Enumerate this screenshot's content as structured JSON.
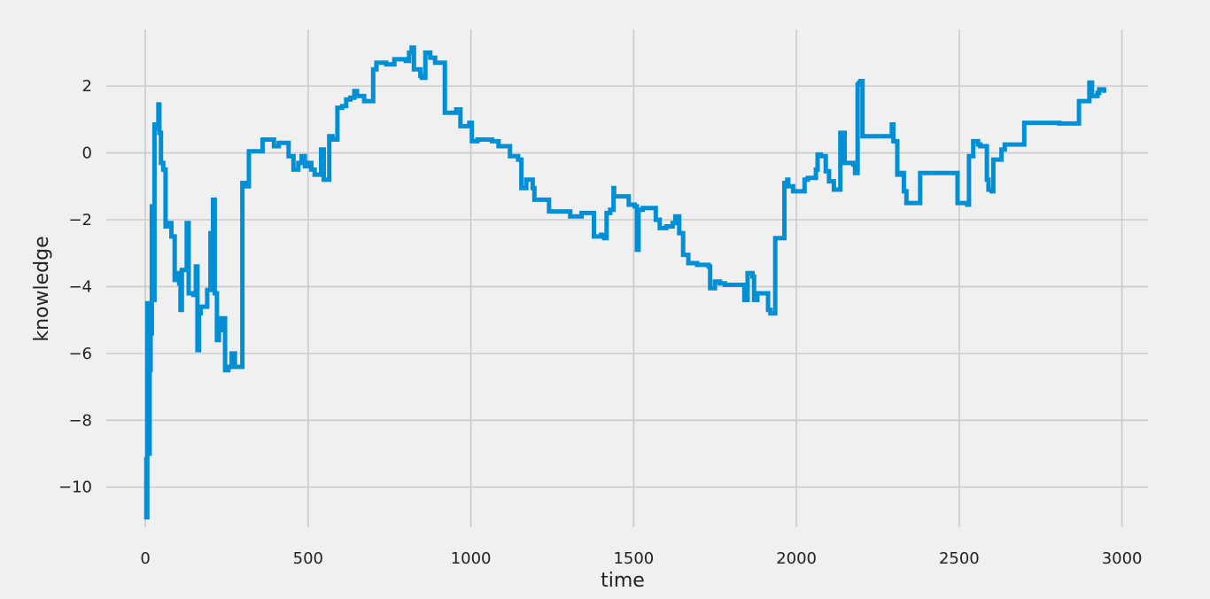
{
  "chart_data": {
    "type": "line",
    "title": "",
    "xlabel": "time",
    "ylabel": "knowledge",
    "xlim": [
      -120,
      3080
    ],
    "ylim": [
      -11.2,
      3.7
    ],
    "xticks": [
      0,
      500,
      1000,
      1500,
      2000,
      2500,
      3000
    ],
    "yticks": [
      -10,
      -8,
      -6,
      -4,
      -2,
      0,
      2
    ],
    "xtick_labels": [
      "0",
      "500",
      "1000",
      "1500",
      "2000",
      "2500",
      "3000"
    ],
    "ytick_labels": [
      "−10",
      "−8",
      "−6",
      "−4",
      "−2",
      "0",
      "2"
    ],
    "grid": true,
    "style": "fivethirtyeight",
    "colors": {
      "background": "#f0f0f0",
      "grid": "#cbcbcb",
      "line": "#008fd5"
    },
    "series": [
      {
        "color": "#008fd5",
        "step": true,
        "points": [
          [
            0,
            -9.1
          ],
          [
            3,
            -10.9
          ],
          [
            6,
            -4.5
          ],
          [
            10,
            -9.0
          ],
          [
            13,
            -6.5
          ],
          [
            16,
            -5.4
          ],
          [
            20,
            -1.6
          ],
          [
            24,
            -4.4
          ],
          [
            28,
            0.85
          ],
          [
            36,
            0.75
          ],
          [
            40,
            1.45
          ],
          [
            43,
            0.6
          ],
          [
            48,
            -0.3
          ],
          [
            55,
            -0.5
          ],
          [
            62,
            -2.2
          ],
          [
            68,
            -2.1
          ],
          [
            80,
            -2.5
          ],
          [
            90,
            -3.8
          ],
          [
            96,
            -3.6
          ],
          [
            104,
            -3.9
          ],
          [
            108,
            -4.7
          ],
          [
            112,
            -3.5
          ],
          [
            120,
            -3.5
          ],
          [
            127,
            -2.1
          ],
          [
            133,
            -4.2
          ],
          [
            140,
            -4.2
          ],
          [
            148,
            -4.25
          ],
          [
            155,
            -3.4
          ],
          [
            160,
            -5.9
          ],
          [
            165,
            -4.8
          ],
          [
            170,
            -4.6
          ],
          [
            180,
            -4.6
          ],
          [
            190,
            -4.1
          ],
          [
            200,
            -2.4
          ],
          [
            208,
            -1.4
          ],
          [
            213,
            -4.2
          ],
          [
            220,
            -5.6
          ],
          [
            226,
            -5.3
          ],
          [
            233,
            -4.95
          ],
          [
            245,
            -6.5
          ],
          [
            255,
            -6.4
          ],
          [
            265,
            -6.0
          ],
          [
            275,
            -6.4
          ],
          [
            298,
            -0.9
          ],
          [
            310,
            -1.0
          ],
          [
            318,
            0.05
          ],
          [
            350,
            0.05
          ],
          [
            360,
            0.4
          ],
          [
            395,
            0.2
          ],
          [
            410,
            0.3
          ],
          [
            440,
            -0.1
          ],
          [
            455,
            -0.5
          ],
          [
            470,
            -0.3
          ],
          [
            480,
            -0.1
          ],
          [
            490,
            -0.4
          ],
          [
            500,
            -0.3
          ],
          [
            510,
            -0.5
          ],
          [
            520,
            -0.65
          ],
          [
            540,
            0.1
          ],
          [
            548,
            -0.8
          ],
          [
            565,
            0.5
          ],
          [
            575,
            0.4
          ],
          [
            590,
            1.35
          ],
          [
            605,
            1.4
          ],
          [
            617,
            1.6
          ],
          [
            630,
            1.65
          ],
          [
            642,
            1.85
          ],
          [
            650,
            1.7
          ],
          [
            672,
            1.55
          ],
          [
            700,
            2.5
          ],
          [
            710,
            2.7
          ],
          [
            740,
            2.65
          ],
          [
            765,
            2.8
          ],
          [
            800,
            2.75
          ],
          [
            810,
            3.0
          ],
          [
            818,
            3.15
          ],
          [
            825,
            2.5
          ],
          [
            845,
            2.3
          ],
          [
            850,
            2.25
          ],
          [
            860,
            3.0
          ],
          [
            875,
            2.85
          ],
          [
            890,
            2.7
          ],
          [
            920,
            1.2
          ],
          [
            955,
            1.3
          ],
          [
            968,
            0.8
          ],
          [
            985,
            0.8
          ],
          [
            995,
            0.9
          ],
          [
            1003,
            0.35
          ],
          [
            1020,
            0.4
          ],
          [
            1065,
            0.35
          ],
          [
            1085,
            0.2
          ],
          [
            1120,
            -0.1
          ],
          [
            1145,
            -0.2
          ],
          [
            1155,
            -1.05
          ],
          [
            1170,
            -0.8
          ],
          [
            1190,
            -1.05
          ],
          [
            1195,
            -1.4
          ],
          [
            1240,
            -1.75
          ],
          [
            1290,
            -1.75
          ],
          [
            1305,
            -1.9
          ],
          [
            1340,
            -1.8
          ],
          [
            1378,
            -2.5
          ],
          [
            1400,
            -2.45
          ],
          [
            1410,
            -2.55
          ],
          [
            1417,
            -1.8
          ],
          [
            1428,
            -1.7
          ],
          [
            1438,
            -1.05
          ],
          [
            1440,
            -1.3
          ],
          [
            1460,
            -1.3
          ],
          [
            1470,
            -1.3
          ],
          [
            1478,
            -1.3
          ],
          [
            1485,
            -1.55
          ],
          [
            1498,
            -1.55
          ],
          [
            1503,
            -1.6
          ],
          [
            1510,
            -2.9
          ],
          [
            1515,
            -1.7
          ],
          [
            1528,
            -1.65
          ],
          [
            1568,
            -2.0
          ],
          [
            1580,
            -2.25
          ],
          [
            1600,
            -2.2
          ],
          [
            1620,
            -2.1
          ],
          [
            1628,
            -1.9
          ],
          [
            1640,
            -2.4
          ],
          [
            1652,
            -3.05
          ],
          [
            1660,
            -3.05
          ],
          [
            1668,
            -3.3
          ],
          [
            1695,
            -3.35
          ],
          [
            1730,
            -3.4
          ],
          [
            1735,
            -4.05
          ],
          [
            1750,
            -3.85
          ],
          [
            1765,
            -3.9
          ],
          [
            1780,
            -3.95
          ],
          [
            1840,
            -4.4
          ],
          [
            1850,
            -3.6
          ],
          [
            1865,
            -3.7
          ],
          [
            1870,
            -4.4
          ],
          [
            1880,
            -4.2
          ],
          [
            1900,
            -4.2
          ],
          [
            1913,
            -4.7
          ],
          [
            1920,
            -4.8
          ],
          [
            1935,
            -2.55
          ],
          [
            1950,
            -2.55
          ],
          [
            1963,
            -0.9
          ],
          [
            1972,
            -0.8
          ],
          [
            1975,
            -1.0
          ],
          [
            1990,
            -1.15
          ],
          [
            2025,
            -0.8
          ],
          [
            2035,
            -0.75
          ],
          [
            2060,
            -0.5
          ],
          [
            2065,
            -0.05
          ],
          [
            2075,
            -0.1
          ],
          [
            2090,
            -0.55
          ],
          [
            2100,
            -0.85
          ],
          [
            2115,
            -1.1
          ],
          [
            2135,
            0.6
          ],
          [
            2148,
            -0.3
          ],
          [
            2163,
            -0.3
          ],
          [
            2175,
            -0.35
          ],
          [
            2180,
            -0.6
          ],
          [
            2188,
            2.05
          ],
          [
            2193,
            2.1
          ],
          [
            2197,
            2.15
          ],
          [
            2203,
            0.5
          ],
          [
            2290,
            0.5
          ],
          [
            2293,
            0.85
          ],
          [
            2298,
            0.35
          ],
          [
            2310,
            -0.65
          ],
          [
            2320,
            -0.6
          ],
          [
            2330,
            -1.15
          ],
          [
            2338,
            -1.5
          ],
          [
            2370,
            -1.5
          ],
          [
            2380,
            -0.6
          ],
          [
            2415,
            -0.6
          ],
          [
            2490,
            -0.6
          ],
          [
            2495,
            -1.5
          ],
          [
            2525,
            -1.55
          ],
          [
            2530,
            -0.1
          ],
          [
            2543,
            0.35
          ],
          [
            2553,
            0.35
          ],
          [
            2558,
            0.25
          ],
          [
            2565,
            0.2
          ],
          [
            2580,
            0.2
          ],
          [
            2585,
            -0.8
          ],
          [
            2590,
            -1.1
          ],
          [
            2600,
            -1.15
          ],
          [
            2605,
            -0.2
          ],
          [
            2625,
            -0.2
          ],
          [
            2630,
            0.1
          ],
          [
            2640,
            0.25
          ],
          [
            2650,
            0.25
          ],
          [
            2700,
            0.9
          ],
          [
            2730,
            0.9
          ],
          [
            2780,
            0.9
          ],
          [
            2800,
            0.9
          ],
          [
            2808,
            0.88
          ],
          [
            2860,
            0.88
          ],
          [
            2868,
            1.55
          ],
          [
            2880,
            1.55
          ],
          [
            2895,
            1.55
          ],
          [
            2900,
            2.1
          ],
          [
            2908,
            1.7
          ],
          [
            2920,
            1.7
          ],
          [
            2925,
            1.8
          ],
          [
            2930,
            1.9
          ],
          [
            2945,
            1.8
          ]
        ]
      }
    ]
  }
}
